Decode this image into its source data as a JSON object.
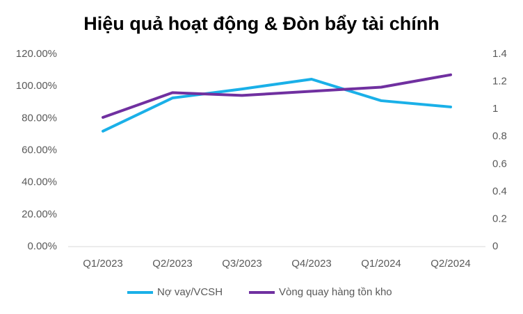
{
  "chart_data": {
    "type": "line",
    "title": "Hiệu quả hoạt động & Đòn bẩy tài chính",
    "categories": [
      "Q1/2023",
      "Q2/2023",
      "Q3/2023",
      "Q4/2023",
      "Q1/2024",
      "Q2/2024"
    ],
    "series": [
      {
        "name": "Nợ vay/VCSH",
        "color": "#1ab0e8",
        "values": [
          72,
          92.7,
          98.3,
          104.4,
          91,
          87.1
        ]
      },
      {
        "name": "Vòng quay hàng tồn kho",
        "color": "#7030a0",
        "axis": "y2",
        "values": [
          0.94,
          1.12,
          1.1,
          1.13,
          1.16,
          1.25
        ]
      }
    ],
    "ylim": [
      0,
      120
    ],
    "yticks": [
      {
        "value": 0,
        "label": "0.00%"
      },
      {
        "value": 20,
        "label": "20.00%"
      },
      {
        "value": 40,
        "label": "40.00%"
      },
      {
        "value": 60,
        "label": "60.00%"
      },
      {
        "value": 80,
        "label": "80.00%"
      },
      {
        "value": 100,
        "label": "100.00%"
      },
      {
        "value": 120,
        "label": "120.00%"
      }
    ],
    "y2lim": [
      0,
      1.4
    ],
    "y2ticks": [
      0,
      0.2,
      0.4,
      0.6,
      0.8,
      1,
      1.2,
      1.4
    ],
    "grid": false,
    "legend": "bottom"
  }
}
